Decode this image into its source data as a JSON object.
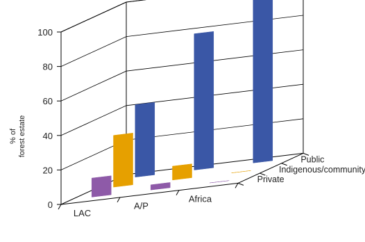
{
  "chart_data": {
    "type": "bar",
    "subtype": "3d-bar",
    "title": "",
    "xlabel": "",
    "ylabel_lines": [
      "% of",
      "forest estate"
    ],
    "ylim": [
      0,
      100
    ],
    "yticks": [
      0,
      20,
      40,
      60,
      80,
      100
    ],
    "grid": true,
    "categories": [
      "LAC",
      "A/P",
      "Africa"
    ],
    "series": [
      {
        "name": "Private",
        "color": "#8e5aa8",
        "values": [
          11,
          3,
          0
        ]
      },
      {
        "name": "Indigenous/community",
        "color": "#e6a000",
        "values": [
          30,
          8,
          0
        ]
      },
      {
        "name": "Public",
        "color": "#3a57a6",
        "values": [
          42,
          79,
          98
        ]
      }
    ]
  }
}
